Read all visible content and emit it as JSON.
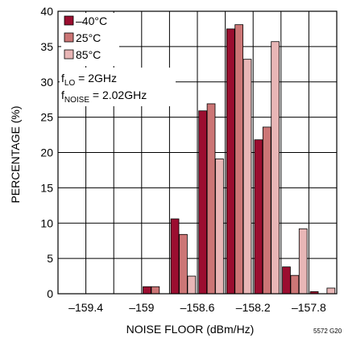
{
  "chart_data": {
    "type": "bar",
    "xlabel": "NOISE FLOOR (dBm/Hz)",
    "ylabel": "PERCENTAGE (%)",
    "ylim": [
      0,
      40
    ],
    "yticks": [
      "0",
      "5",
      "10",
      "15",
      "20",
      "25",
      "30",
      "35",
      "40"
    ],
    "xlim": [
      -159.6,
      -157.6
    ],
    "xticks": [
      {
        "value": -159.4,
        "label": "–159.4"
      },
      {
        "value": -159.0,
        "label": "–159"
      },
      {
        "value": -158.6,
        "label": "–158.6"
      },
      {
        "value": -158.2,
        "label": "–158.2"
      },
      {
        "value": -157.8,
        "label": "–157.8"
      }
    ],
    "bin_width": 0.2,
    "bins": [
      -159.0,
      -158.8,
      -158.6,
      -158.4,
      -158.2,
      -158.0,
      -157.8
    ],
    "series": [
      {
        "name": "–40°C",
        "color": "#9b0e30",
        "values": [
          1.0,
          10.6,
          25.9,
          37.5,
          21.8,
          3.8,
          0.3
        ]
      },
      {
        "name": "25°C",
        "color": "#cc7676",
        "values": [
          1.0,
          8.4,
          26.9,
          38.1,
          23.6,
          2.6,
          0.0
        ]
      },
      {
        "name": "85°C",
        "color": "#e8b6b6",
        "values": [
          0.0,
          2.5,
          19.1,
          33.2,
          35.7,
          9.2,
          0.8
        ]
      }
    ],
    "annotations": {
      "f_lo": {
        "main": "f",
        "sub": "LO",
        "rest": " = 2GHz"
      },
      "f_noise": {
        "main": "f",
        "sub": "NOISE",
        "rest": " = 2.02GHz"
      }
    },
    "legend_position": "top-left",
    "grid": true,
    "figure_code": "5572 G20"
  }
}
